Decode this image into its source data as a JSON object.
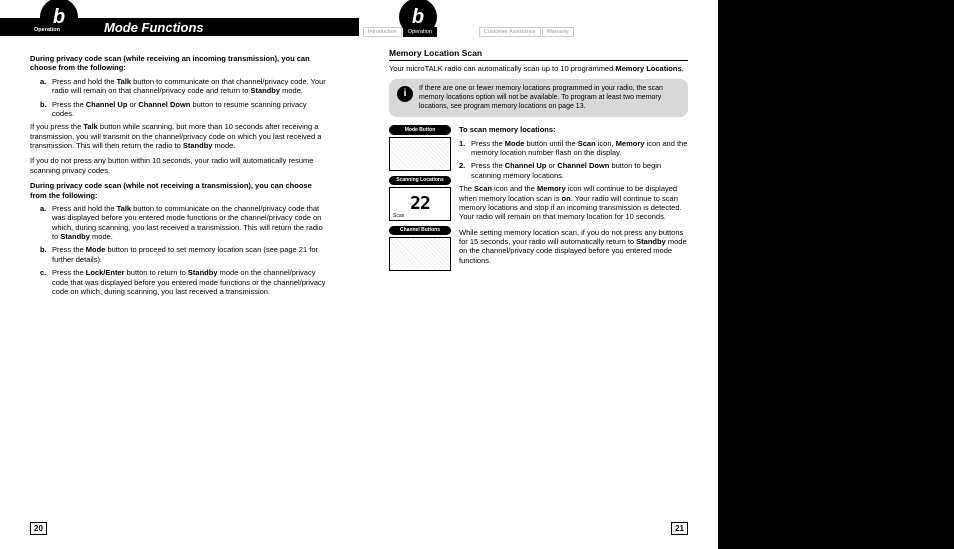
{
  "left": {
    "tab": "Operation",
    "title": "Mode Functions",
    "p1": "During privacy code scan (while receiving an incoming transmission), you can choose from the following:",
    "a1_l": "a.",
    "a1": "Press and hold the <b>Talk</b> button to communicate on that channel/privacy code. Your radio will remain on that channel/privacy code and return to <b>Standby</b> mode.",
    "b1_l": "b.",
    "b1": "Press the <b>Channel Up</b> or <b>Channel Down</b> button to resume scanning privacy codes.",
    "mid1": "If you press the <b>Talk</b> button while scanning, but more than 10 seconds after receiving a transmission, you will transmit on the channel/privacy code on which you last received a transmission. This will then return the radio to <b>Standby</b> mode.",
    "mid2": "If you do not press any button within 10 seconds, your radio will automatically resume scanning privacy codes.",
    "p2": "During privacy code scan (while not receiving a transmission), you can choose from the following:",
    "a2_l": "a.",
    "a2": "Press and hold the <b>Talk</b> button to communicate on the channel/privacy code that was displayed before you entered mode functions or the channel/privacy code on which, during scanning, you last received a transmission. This will return the radio to <b>Standby</b> mode.",
    "b2_l": "b.",
    "b2": "Press the <b>Mode</b> button to proceed to set memory location scan (see page 21 for further details).",
    "c2_l": "c.",
    "c2": "Press the <b>Lock/Enter</b> button to return to <b>Standby</b> mode on the channel/privacy code that was displayed before you entered mode functions or the channel/privacy code on which, during scanning, you last received a transmission.",
    "pagenum": "20"
  },
  "right": {
    "tabs": {
      "intro": "Introduction",
      "op": "Operation",
      "ca": "Customer Assistance",
      "wa": "Warranty"
    },
    "section": "Memory Location Scan",
    "intro": "Your microTALK radio can automatically scan up to 10 programmed <b>Memory Locations</b>.",
    "info": "If there are one or fewer memory locations programmed in your radio, the scan memory locations option will not be available. To program at least two memory locations, see program memory locations on page 13.",
    "labels": {
      "mode": "Mode Button",
      "scan": "Scanning Locations",
      "chan": "Channel Buttons"
    },
    "lcd_num": "22",
    "lcd_scan": "Scan",
    "toscan": "To scan memory locations:",
    "n1_l": "1.",
    "n1": "Press the <b>Mode</b> button until the <b>Scan</b> icon, <b>Memory</b> icon and the memory location number flash on the display.",
    "n2_l": "2.",
    "n2": "Press the <b>Channel Up</b> or <b>Channel Down</b> button to begin scanning memory locations.",
    "after1": "The <b>Scan</b> icon and the <b>Memory</b> icon will continue to be displayed when memory location scan is <b>on</b>. Your radio will continue to scan memory locations and stop if an incoming transmission is detected. Your radio will remain on that memory location for 10 seconds.",
    "after2": "While setting memory location scan, if you do not press any buttons for 15 seconds, your radio will automatically return to <b>Standby</b> mode on the channel/privacy code displayed before you entered mode functions.",
    "pagenum": "21"
  }
}
